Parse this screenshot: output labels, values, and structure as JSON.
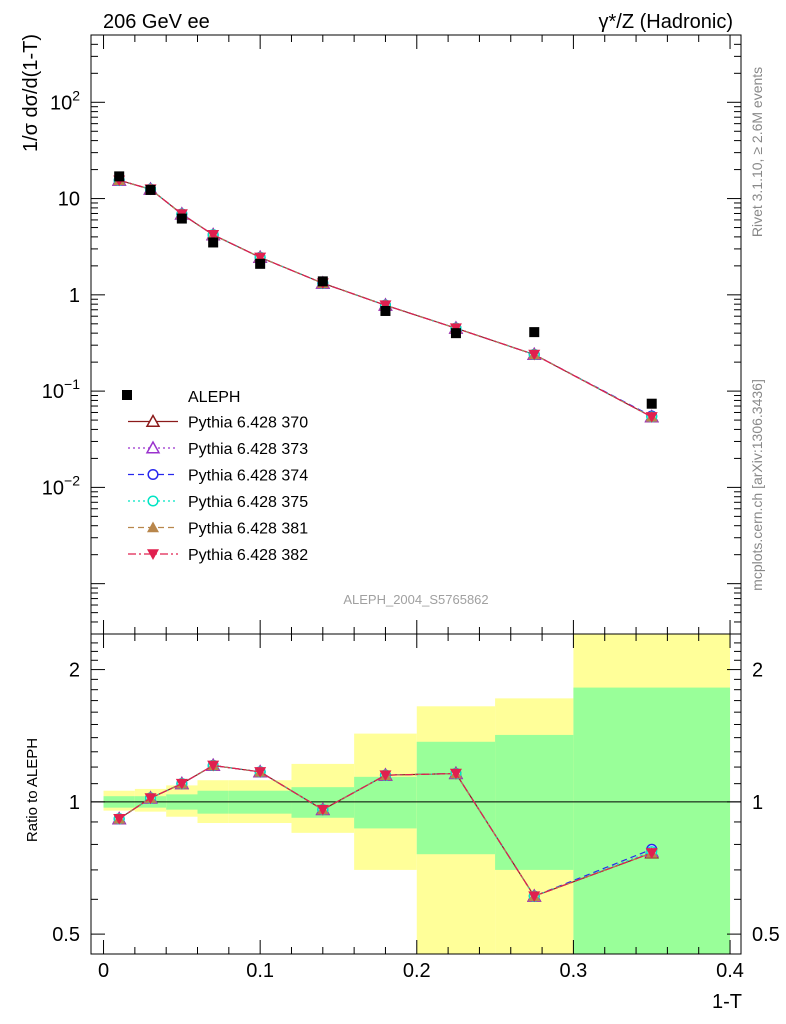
{
  "header": {
    "left": "206 GeV ee",
    "right": "γ*/Z (Hadronic)"
  },
  "side_text": {
    "rivet": "Rivet 3.1.10, ≥ 2.6M events",
    "mcplots": "mcplots.cern.ch [arXiv:1306.3436]"
  },
  "watermark": "ALEPH_2004_S5765862",
  "colors": {
    "data": "#000000",
    "s370": "#8b1a1a",
    "s373": "#9a32cd",
    "s374": "#2727ee",
    "s375": "#00e5c4",
    "s381": "#b8864b",
    "s382": "#e0204f",
    "band_inner": "#99ff99",
    "band_outer": "#ffff99"
  },
  "chart_data": [
    {
      "type": "line",
      "panel": "main",
      "ylabel": "1/σ  dσ/d(1-T)",
      "yscale": "log",
      "ylim": [
        0.0003,
        500
      ],
      "xlim": [
        -0.008,
        0.407
      ],
      "y_ticks": [
        {
          "value": 0.01,
          "base": "10",
          "exp": "−2"
        },
        {
          "value": 0.1,
          "base": "10",
          "exp": "−1"
        },
        {
          "value": 1,
          "label": "1"
        },
        {
          "value": 10,
          "label": "10"
        },
        {
          "value": 100,
          "base": "10",
          "exp": "2"
        }
      ],
      "legend_position": "middle-left",
      "x": [
        0.01,
        0.03,
        0.05,
        0.07,
        0.1,
        0.14,
        0.18,
        0.225,
        0.275,
        0.35
      ],
      "data": {
        "name": "ALEPH",
        "values": [
          17.0,
          12.3,
          6.2,
          3.5,
          2.1,
          1.38,
          0.68,
          0.4,
          0.41,
          0.074
        ]
      },
      "series": [
        {
          "name": "Pythia 6.428 370",
          "values": [
            15.5,
            12.5,
            6.9,
            4.2,
            2.45,
            1.32,
            0.78,
            0.45,
            0.24,
            0.054
          ]
        },
        {
          "name": "Pythia 6.428 373",
          "values": [
            15.5,
            12.5,
            6.9,
            4.2,
            2.45,
            1.32,
            0.78,
            0.45,
            0.24,
            0.054
          ]
        },
        {
          "name": "Pythia 6.428 374",
          "values": [
            15.5,
            12.5,
            6.9,
            4.2,
            2.45,
            1.32,
            0.78,
            0.45,
            0.24,
            0.055
          ]
        },
        {
          "name": "Pythia 6.428 375",
          "values": [
            15.5,
            12.5,
            6.9,
            4.2,
            2.45,
            1.32,
            0.78,
            0.45,
            0.24,
            0.054
          ]
        },
        {
          "name": "Pythia 6.428 381",
          "values": [
            15.5,
            12.5,
            6.9,
            4.2,
            2.45,
            1.32,
            0.78,
            0.45,
            0.24,
            0.054
          ]
        },
        {
          "name": "Pythia 6.428 382",
          "values": [
            15.5,
            12.5,
            6.9,
            4.2,
            2.45,
            1.32,
            0.78,
            0.45,
            0.24,
            0.054
          ]
        }
      ]
    },
    {
      "type": "line",
      "panel": "ratio",
      "ylabel": "Ratio to ALEPH",
      "xlabel": "1-T",
      "yscale": "log",
      "ylim": [
        0.4505,
        2.41
      ],
      "xlim": [
        -0.008,
        0.407
      ],
      "y_ticks": [
        0.5,
        1,
        2
      ],
      "x_ticks": [
        0,
        0.1,
        0.2,
        0.3,
        0.4
      ],
      "bands": {
        "edges": [
          0.0,
          0.02,
          0.04,
          0.06,
          0.08,
          0.12,
          0.16,
          0.2,
          0.25,
          0.3,
          0.4
        ],
        "inner_low": [
          0.97,
          0.97,
          0.96,
          0.94,
          0.94,
          0.92,
          0.87,
          0.76,
          0.7,
          0.35
        ],
        "inner_high": [
          1.03,
          1.03,
          1.04,
          1.06,
          1.06,
          1.08,
          1.14,
          1.37,
          1.42,
          1.82
        ],
        "outer_low": [
          0.955,
          0.95,
          0.925,
          0.895,
          0.895,
          0.85,
          0.7,
          0.37,
          0.35,
          0.35
        ],
        "outer_high": [
          1.06,
          1.07,
          1.09,
          1.12,
          1.12,
          1.22,
          1.43,
          1.65,
          1.72,
          2.41
        ]
      },
      "x": [
        0.01,
        0.03,
        0.05,
        0.07,
        0.1,
        0.14,
        0.18,
        0.225,
        0.275,
        0.35
      ],
      "series": [
        {
          "name": "Pythia 6.428 370",
          "values": [
            0.915,
            1.02,
            1.1,
            1.21,
            1.17,
            0.96,
            1.15,
            1.16,
            0.61,
            0.765
          ]
        },
        {
          "name": "Pythia 6.428 373",
          "values": [
            0.915,
            1.02,
            1.1,
            1.21,
            1.17,
            0.96,
            1.15,
            1.16,
            0.61,
            0.77
          ]
        },
        {
          "name": "Pythia 6.428 374",
          "values": [
            0.915,
            1.02,
            1.1,
            1.21,
            1.17,
            0.96,
            1.15,
            1.16,
            0.61,
            0.78
          ]
        },
        {
          "name": "Pythia 6.428 375",
          "values": [
            0.915,
            1.02,
            1.1,
            1.21,
            1.17,
            0.96,
            1.15,
            1.16,
            0.61,
            0.77
          ]
        },
        {
          "name": "Pythia 6.428 381",
          "values": [
            0.915,
            1.02,
            1.1,
            1.21,
            1.17,
            0.96,
            1.15,
            1.16,
            0.61,
            0.765
          ]
        },
        {
          "name": "Pythia 6.428 382",
          "values": [
            0.915,
            1.02,
            1.1,
            1.21,
            1.17,
            0.96,
            1.15,
            1.16,
            0.61,
            0.765
          ]
        }
      ]
    }
  ]
}
